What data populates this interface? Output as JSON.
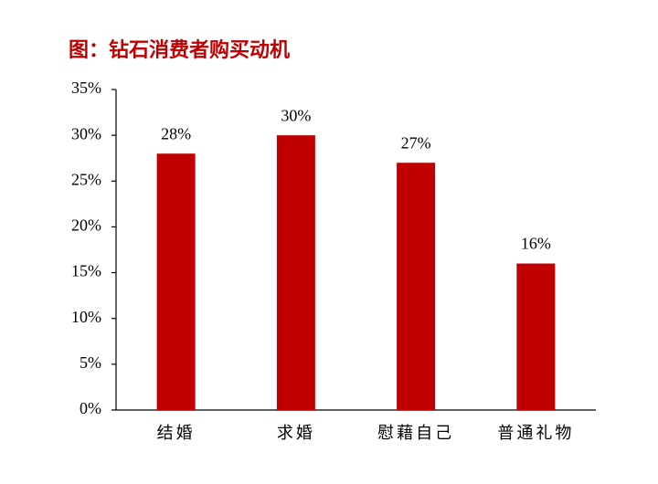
{
  "chart_data": {
    "type": "bar",
    "title": "图：钻石消费者购买动机",
    "categories": [
      "结婚",
      "求婚",
      "慰藉自己",
      "普通礼物"
    ],
    "values": [
      28,
      30,
      27,
      16
    ],
    "value_labels": [
      "28%",
      "30%",
      "27%",
      "16%"
    ],
    "color": "#c00000",
    "ylim": [
      0,
      35
    ],
    "yticks": [
      {
        "value": 0,
        "label": "0%"
      },
      {
        "value": 5,
        "label": "5%"
      },
      {
        "value": 10,
        "label": "10%"
      },
      {
        "value": 15,
        "label": "15%"
      },
      {
        "value": 20,
        "label": "20%"
      },
      {
        "value": 25,
        "label": "25%"
      },
      {
        "value": 30,
        "label": "30%"
      },
      {
        "value": 35,
        "label": "35%"
      }
    ],
    "grid": false
  }
}
